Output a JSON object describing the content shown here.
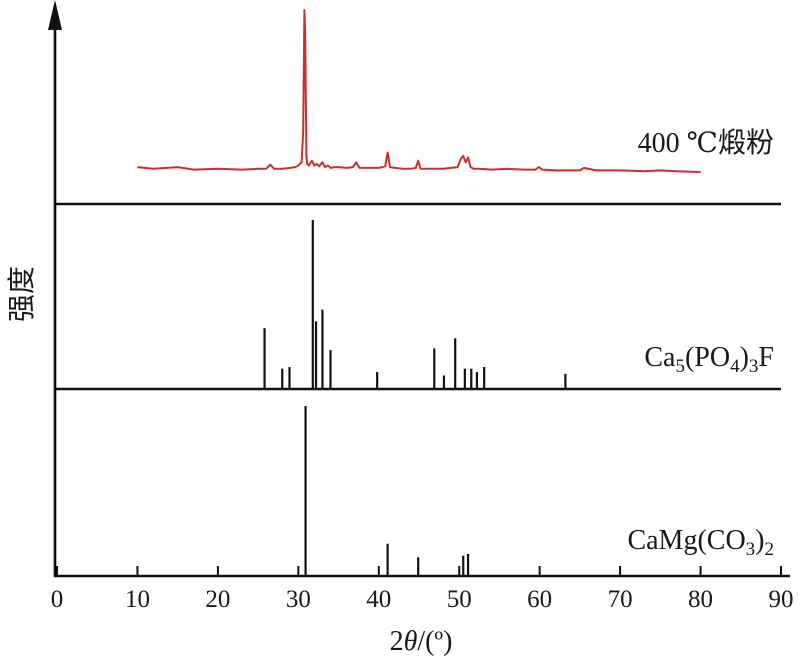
{
  "chart_data": {
    "type": "line",
    "xlabel": {
      "prefix": "2",
      "italic": "θ",
      "suffix": "/(º)"
    },
    "ylabel": "强度",
    "xlim": [
      0,
      90
    ],
    "xticks": [
      0,
      10,
      20,
      30,
      40,
      50,
      60,
      70,
      80,
      90
    ],
    "tick_labels": [
      "0",
      "10",
      "20",
      "30",
      "40",
      "50",
      "60",
      "70",
      "80",
      "90"
    ],
    "panels": [
      {
        "key": "sample",
        "style": "line",
        "color": "#c8302b",
        "label": {
          "main": "400 ℃煅粉"
        },
        "baseline": 0.03,
        "x": [
          10.0,
          12.0,
          15.0,
          17.0,
          20.0,
          23.0,
          25.0,
          26.0,
          26.5,
          27.0,
          28.0,
          29.0,
          29.6,
          30.0,
          30.4,
          30.6,
          30.75,
          30.85,
          31.0,
          31.1,
          31.3,
          31.7,
          32.0,
          32.3,
          32.6,
          33.0,
          33.3,
          33.7,
          34.0,
          34.5,
          35.0,
          36.0,
          36.8,
          37.2,
          37.6,
          38.5,
          40.0,
          40.8,
          41.1,
          41.4,
          42.0,
          43.0,
          44.0,
          44.6,
          44.9,
          45.2,
          46.0,
          47.0,
          48.0,
          49.0,
          49.8,
          50.2,
          50.5,
          50.8,
          51.1,
          51.4,
          51.8,
          52.5,
          54.0,
          56.0,
          58.0,
          59.5,
          59.9,
          60.3,
          62.0,
          64.0,
          65.0,
          65.5,
          67.0,
          70.0,
          73.0,
          75.0,
          77.0,
          80.0
        ],
        "y": [
          0.03,
          0.02,
          0.03,
          0.015,
          0.02,
          0.015,
          0.02,
          0.02,
          0.045,
          0.02,
          0.02,
          0.025,
          0.03,
          0.04,
          0.06,
          0.25,
          1.0,
          0.85,
          0.1,
          0.05,
          0.04,
          0.07,
          0.04,
          0.05,
          0.035,
          0.06,
          0.03,
          0.04,
          0.025,
          0.03,
          0.03,
          0.025,
          0.03,
          0.06,
          0.025,
          0.025,
          0.025,
          0.035,
          0.12,
          0.03,
          0.025,
          0.02,
          0.02,
          0.025,
          0.07,
          0.02,
          0.02,
          0.02,
          0.02,
          0.025,
          0.03,
          0.08,
          0.1,
          0.06,
          0.09,
          0.03,
          0.02,
          0.02,
          0.015,
          0.02,
          0.015,
          0.015,
          0.03,
          0.015,
          0.01,
          0.01,
          0.01,
          0.025,
          0.01,
          0.01,
          0.005,
          0.01,
          0.005,
          0.0
        ]
      },
      {
        "key": "fluorapatite",
        "style": "stick",
        "color": "#111111",
        "label": {
          "main": "Ca",
          "sub1": "5",
          "mid": "(PO",
          "sub2": "4",
          "end": ")",
          "sub3": "3",
          "tail": "F"
        },
        "x": [
          25.8,
          28.0,
          28.9,
          31.8,
          32.2,
          33.0,
          34.0,
          39.8,
          46.9,
          48.1,
          49.5,
          50.7,
          51.5,
          52.2,
          53.1,
          63.2
        ],
        "y": [
          0.36,
          0.12,
          0.13,
          1.0,
          0.4,
          0.47,
          0.23,
          0.1,
          0.24,
          0.08,
          0.3,
          0.12,
          0.12,
          0.1,
          0.13,
          0.09
        ]
      },
      {
        "key": "dolomite",
        "style": "stick",
        "color": "#111111",
        "label": {
          "main": "CaMg(CO",
          "sub1": "3",
          "end": ")",
          "sub2": "2"
        },
        "x": [
          30.9,
          41.1,
          44.9,
          50.5,
          51.1
        ],
        "y": [
          1.0,
          0.19,
          0.11,
          0.12,
          0.13
        ]
      }
    ]
  }
}
